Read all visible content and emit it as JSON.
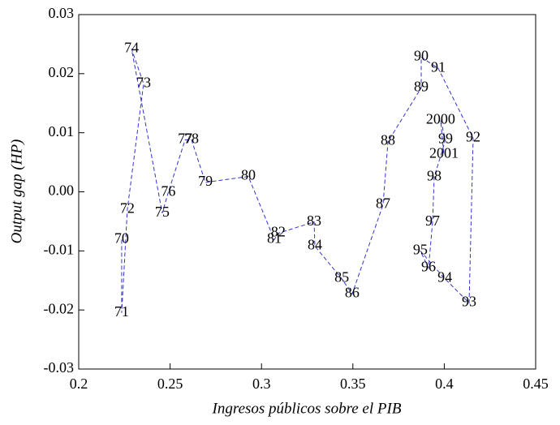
{
  "chart_data": {
    "type": "line",
    "xlabel": "Ingresos públicos sobre el PIB",
    "ylabel": "Output gap (HP)",
    "categories": [
      "70",
      "71",
      "72",
      "73",
      "74",
      "75",
      "76",
      "77",
      "78",
      "79",
      "80",
      "81",
      "82",
      "83",
      "84",
      "85",
      "86",
      "87",
      "88",
      "89",
      "90",
      "91",
      "92",
      "93",
      "94",
      "95",
      "96",
      "97",
      "98",
      "99",
      "2000",
      "2001"
    ],
    "x": [
      0.2235,
      0.2235,
      0.2266,
      0.2355,
      0.2289,
      0.2457,
      0.249,
      0.2582,
      0.2617,
      0.2693,
      0.2928,
      0.307,
      0.3092,
      0.3288,
      0.3292,
      0.3439,
      0.3496,
      0.3665,
      0.3692,
      0.3874,
      0.3874,
      0.3967,
      0.4158,
      0.4136,
      0.4003,
      0.3869,
      0.3914,
      0.3936,
      0.3945,
      0.4007,
      0.398,
      0.3998
    ],
    "values": [
      -0.0081,
      -0.0205,
      -0.003,
      0.0183,
      0.0242,
      -0.0036,
      -0.0001,
      0.0088,
      0.0088,
      0.0016,
      0.0026,
      -0.0081,
      -0.007,
      -0.0051,
      -0.0092,
      -0.0147,
      -0.0173,
      -0.0022,
      0.0085,
      0.0176,
      0.0228,
      0.0209,
      0.0091,
      -0.0188,
      -0.0147,
      -0.01,
      -0.0129,
      -0.0051,
      0.0025,
      0.0088,
      0.0121,
      0.0063
    ],
    "color": "#3333cc",
    "xlim": [
      0.2,
      0.45
    ],
    "xticks": [
      0.2,
      0.25,
      0.3,
      0.35,
      0.4,
      0.45
    ],
    "ylim": [
      -0.03,
      0.03
    ],
    "yticks": [
      -0.03,
      -0.02,
      -0.01,
      {
        "value": 0,
        "label": "0.00"
      },
      0.01,
      0.02,
      0.03
    ]
  }
}
